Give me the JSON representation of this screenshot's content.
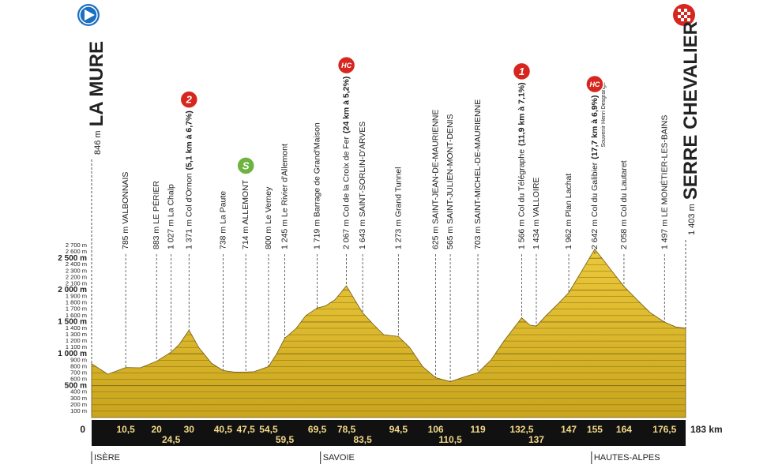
{
  "chart_data": {
    "type": "area",
    "start": {
      "altitude": "846 m",
      "name": "LA MURE"
    },
    "finish": {
      "altitude": "1 403 m",
      "name": "SERRE CHEVALIER"
    },
    "color": "#e2bf2a",
    "xlim": [
      0,
      183
    ],
    "ylim": [
      0,
      2700
    ],
    "x": [
      0,
      5,
      10.5,
      15,
      20,
      24.5,
      27,
      30,
      33,
      37,
      40.5,
      44,
      47.5,
      50,
      54.5,
      57,
      59.5,
      63,
      66,
      69.5,
      72,
      75,
      78.5,
      81,
      83.5,
      87,
      90,
      94.5,
      98,
      102,
      106,
      110.5,
      115,
      119,
      123,
      127,
      130,
      132.5,
      135,
      137,
      140,
      144,
      147,
      151,
      155,
      158,
      161,
      164,
      168,
      172,
      176.5,
      180,
      183
    ],
    "values": [
      846,
      680,
      785,
      780,
      883,
      1027,
      1150,
      1371,
      1100,
      850,
      738,
      714,
      714,
      720,
      800,
      1000,
      1245,
      1400,
      1600,
      1719,
      1750,
      1850,
      2067,
      1850,
      1643,
      1450,
      1300,
      1273,
      1100,
      800,
      625,
      565,
      640,
      703,
      900,
      1200,
      1400,
      1566,
      1450,
      1434,
      1600,
      1800,
      1962,
      2300,
      2642,
      2450,
      2250,
      2058,
      1850,
      1650,
      1497,
      1420,
      1403
    ],
    "yticks": [
      {
        "value": 100,
        "label": "100 m"
      },
      {
        "value": 200,
        "label": "200 m"
      },
      {
        "value": 300,
        "label": "300 m"
      },
      {
        "value": 400,
        "label": "400 m"
      },
      {
        "value": 500,
        "label": "500 m"
      },
      {
        "value": 600,
        "label": "600 m"
      },
      {
        "value": 700,
        "label": "700 m"
      },
      {
        "value": 800,
        "label": "800 m"
      },
      {
        "value": 900,
        "label": "900 m"
      },
      {
        "value": 1000,
        "label": "1 000 m"
      },
      {
        "value": 1100,
        "label": "1 100 m"
      },
      {
        "value": 1200,
        "label": "1 200 m"
      },
      {
        "value": 1300,
        "label": "1 300 m"
      },
      {
        "value": 1400,
        "label": "1 400 m"
      },
      {
        "value": 1500,
        "label": "1 500 m"
      },
      {
        "value": 1600,
        "label": "1 600 m"
      },
      {
        "value": 1700,
        "label": "1 700 m"
      },
      {
        "value": 1800,
        "label": "1 800 m"
      },
      {
        "value": 1900,
        "label": "1 900 m"
      },
      {
        "value": 2000,
        "label": "2 000 m"
      },
      {
        "value": 2100,
        "label": "2 100 m"
      },
      {
        "value": 2200,
        "label": "2 200 m"
      },
      {
        "value": 2300,
        "label": "2 300 m"
      },
      {
        "value": 2400,
        "label": "2 400 m"
      },
      {
        "value": 2500,
        "label": "2 500 m"
      },
      {
        "value": 2600,
        "label": "2 600 m"
      },
      {
        "value": 2700,
        "label": "2 700 m"
      }
    ],
    "xticks": [
      0,
      {
        "value": 10.5,
        "label": "10,5"
      },
      20,
      {
        "value": 24.5,
        "label": "24,5"
      },
      30,
      {
        "value": 40.5,
        "label": "40,5"
      },
      {
        "value": 47.5,
        "label": "47,5"
      },
      {
        "value": 54.5,
        "label": "54,5"
      },
      {
        "value": 59.5,
        "label": "59,5"
      },
      {
        "value": 69.5,
        "label": "69,5"
      },
      {
        "value": 78.5,
        "label": "78,5"
      },
      {
        "value": 83.5,
        "label": "83,5"
      },
      {
        "value": 94.5,
        "label": "94,5"
      },
      106,
      {
        "value": 110.5,
        "label": "110,5"
      },
      119,
      {
        "value": 132.5,
        "label": "132,5"
      },
      137,
      147,
      155,
      164,
      {
        "value": 176.5,
        "label": "176,5"
      },
      {
        "value": 183,
        "label": "183 km"
      }
    ],
    "waypoints": [
      {
        "x": 10.5,
        "name": "785 m VALBONNAIS"
      },
      {
        "x": 20,
        "name": "883 m LE PÉRIER"
      },
      {
        "x": 24.5,
        "name": "1 027 m La Chalp"
      },
      {
        "x": 30,
        "name": "1 371 m Col d'Ornon",
        "detail": "(5,1 km à 6,7%)",
        "badge": "2",
        "badge_color": "#d7261e"
      },
      {
        "x": 40.5,
        "name": "738 m La Paute"
      },
      {
        "x": 47.5,
        "name": "714 m ALLEMONT",
        "badge": "S",
        "badge_color": "#6db33f"
      },
      {
        "x": 54.5,
        "name": "800 m Le Verney"
      },
      {
        "x": 59.5,
        "name": "1 245 m Le Rivier d'Allemont"
      },
      {
        "x": 69.5,
        "name": "1 719 m Barrage de Grand'Maison"
      },
      {
        "x": 78.5,
        "name": "2 067 m Col de la Croix de Fer",
        "detail": "(24 km à 5,2%)",
        "badge": "HC",
        "badge_color": "#d7261e"
      },
      {
        "x": 83.5,
        "name": "1 643 m SAINT-SORLIN-D'ARVES"
      },
      {
        "x": 94.5,
        "name": "1 273 m Grand Tunnel"
      },
      {
        "x": 106,
        "name": "625 m SAINT-JEAN-DE-MAURIENNE"
      },
      {
        "x": 110.5,
        "name": "565 m SAINT-JULIEN-MONT-DENIS"
      },
      {
        "x": 119,
        "name": "703 m SAINT-MICHEL-DE-MAURIENNE"
      },
      {
        "x": 132.5,
        "name": "1 566 m Col du Télégraphe",
        "detail": "(11,9 km à 7,1%)",
        "badge": "1",
        "badge_color": "#d7261e"
      },
      {
        "x": 137,
        "name": "1 434 m VALLOIRE"
      },
      {
        "x": 147,
        "name": "1 962 m Plan Lachat"
      },
      {
        "x": 155,
        "name": "2 642 m Col du Galibier",
        "detail": "(17,7 km à 6,9%)",
        "note": "Souvenir Henri Desgrange",
        "badge": "HC",
        "badge_color": "#d7261e"
      },
      {
        "x": 164,
        "name": "2 058 m Col du Lautaret"
      },
      {
        "x": 176.5,
        "name": "1 497 m LE MONÉTIER-LES-BAINS"
      }
    ],
    "regions": [
      {
        "x": 0,
        "label": "ISÈRE"
      },
      {
        "x": 70.5,
        "label": "SAVOIE"
      },
      {
        "x": 154,
        "label": "HAUTES-ALPES"
      }
    ]
  }
}
